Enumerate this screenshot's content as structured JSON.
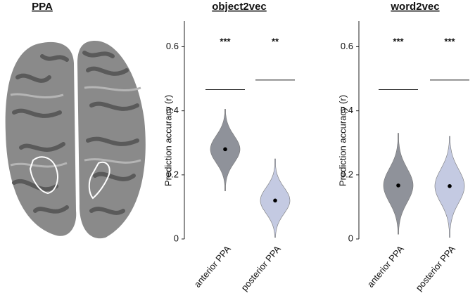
{
  "brain_panel": {
    "title": "PPA"
  },
  "chart_data": [
    {
      "type": "violin",
      "title": "object2vec",
      "ylabel": "Prediction accuracy (r)",
      "categories": [
        "anterior PPA",
        "posterior PPA"
      ],
      "colors": [
        "#8f929a",
        "#c4cae2"
      ],
      "values": [
        0.28,
        0.12
      ],
      "mins": [
        0.15,
        0.005
      ],
      "maxs": [
        0.405,
        0.25
      ],
      "significance": [
        0.466,
        0.496
      ],
      "significance_labels": [
        "***",
        "**"
      ],
      "ylim": [
        0,
        0.68
      ],
      "yticks": [
        0,
        0.2,
        0.4,
        0.6
      ]
    },
    {
      "type": "violin",
      "title": "word2vec",
      "ylabel": "Prediction accuracy (r)",
      "categories": [
        "anterior PPA",
        "posterior PPA"
      ],
      "colors": [
        "#8f929a",
        "#c4cae2"
      ],
      "values": [
        0.167,
        0.165
      ],
      "mins": [
        0.015,
        0.005
      ],
      "maxs": [
        0.33,
        0.32
      ],
      "significance": [
        0.466,
        0.496
      ],
      "significance_labels": [
        "***",
        "***"
      ],
      "ylim": [
        0,
        0.68
      ],
      "yticks": [
        0,
        0.2,
        0.4,
        0.6
      ]
    }
  ]
}
